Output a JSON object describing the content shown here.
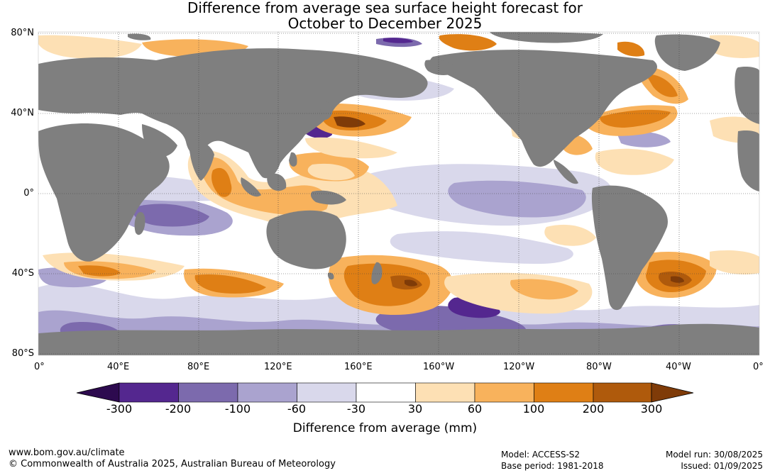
{
  "title": {
    "line1": "Difference from average sea surface height forecast for",
    "line2": "October to December 2025"
  },
  "map": {
    "lat_labels": [
      "80°N",
      "40°N",
      "0°",
      "40°S",
      "80°S"
    ],
    "lon_labels": [
      "0°",
      "40°E",
      "80°E",
      "120°E",
      "160°E",
      "160°W",
      "120°W",
      "80°W",
      "40°W",
      "0°"
    ]
  },
  "legend": {
    "title": "Difference from average (mm)",
    "ticks": [
      "-300",
      "-200",
      "-100",
      "-60",
      "-30",
      "30",
      "60",
      "100",
      "200",
      "300"
    ],
    "bins": [
      {
        "color": "#2d0a4f"
      },
      {
        "color": "#54278f"
      },
      {
        "color": "#7c6aad"
      },
      {
        "color": "#aaa3cf"
      },
      {
        "color": "#d9d8eb"
      },
      {
        "color": "#ffffff"
      },
      {
        "color": "#fde0b4"
      },
      {
        "color": "#f8b25c"
      },
      {
        "color": "#df7f15"
      },
      {
        "color": "#af5a0c"
      },
      {
        "color": "#7f3b08"
      }
    ]
  },
  "footer": {
    "site": "www.bom.gov.au/climate",
    "copyright": "© Commonwealth of Australia 2025, Australian Bureau of Meteorology",
    "model": "Model: ACCESS-S2",
    "base_period": "Base period: 1981-2018",
    "model_run": "Model run: 30/08/2025",
    "issued": "Issued: 01/09/2025"
  },
  "colors": {
    "land": "#7f7f7f",
    "ocean_neutral": "#ffffff",
    "grid": "#444444"
  }
}
